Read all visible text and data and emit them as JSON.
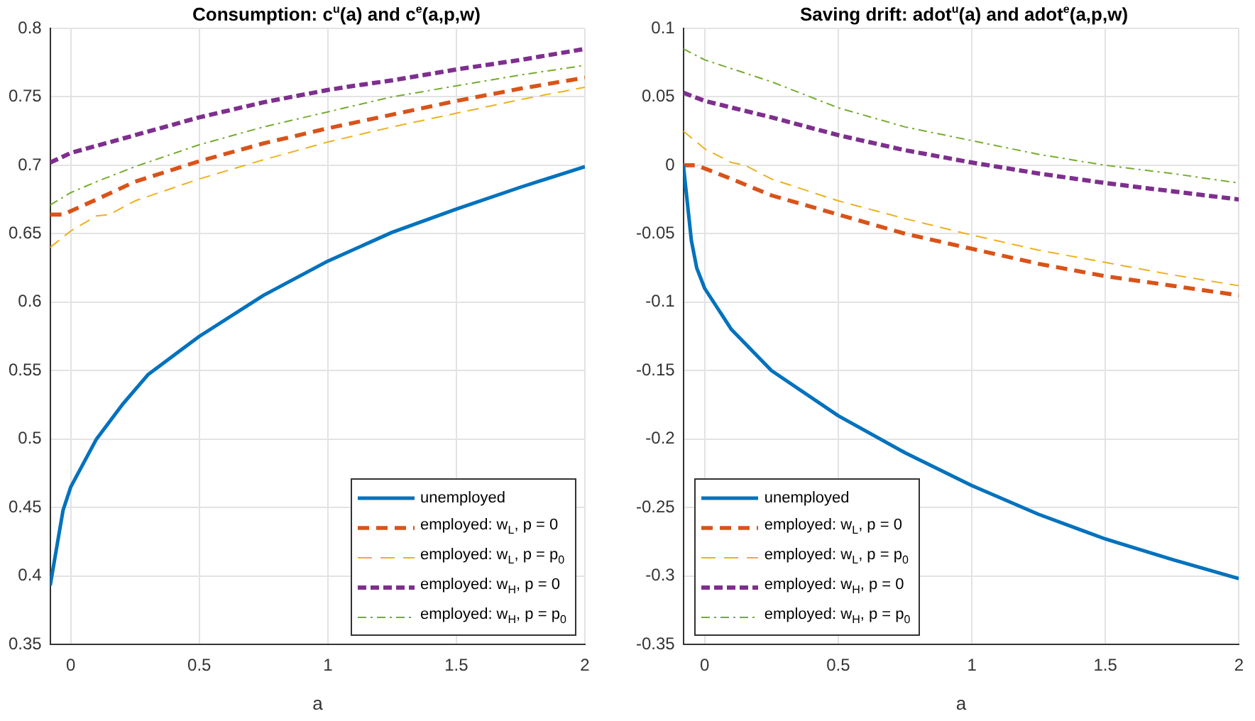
{
  "chart_data": [
    {
      "type": "line",
      "title": "Consumption: c$^{u}$(a) and c$^{e}$(a,p,w)",
      "xlabel": "a",
      "xlim": [
        -0.08,
        2
      ],
      "xticks": [
        0,
        0.5,
        1,
        1.5,
        2
      ],
      "ylim": [
        0.35,
        0.8
      ],
      "yticks": [
        0.35,
        0.4,
        0.45,
        0.5,
        0.55,
        0.6,
        0.65,
        0.7,
        0.75,
        0.8
      ],
      "grid": true,
      "legend": "bottom right",
      "marker": "none",
      "series": [
        {
          "name": "unemployed",
          "color": "#0072bd",
          "line_style": "solid",
          "x": [
            -0.08,
            -0.03,
            0,
            0.1,
            0.2,
            0.3,
            0.5,
            0.75,
            1,
            1.25,
            1.5,
            1.75,
            2
          ],
          "values": [
            0.393,
            0.448,
            0.465,
            0.5,
            0.525,
            0.547,
            0.575,
            0.605,
            0.63,
            0.651,
            0.668,
            0.684,
            0.699
          ]
        },
        {
          "name": "employed: w$_{L}$,  p = 0",
          "color": "#d95319",
          "line_style": "dashed",
          "x": [
            -0.08,
            -0.03,
            0.1,
            0.25,
            0.5,
            0.75,
            1,
            1.25,
            1.5,
            1.75,
            2
          ],
          "values": [
            0.664,
            0.664,
            0.675,
            0.688,
            0.703,
            0.716,
            0.727,
            0.737,
            0.747,
            0.756,
            0.764
          ]
        },
        {
          "name": "employed: w$_{L}$,  p = p$_{0}$",
          "color": "#edb120",
          "line_style": "dashed",
          "x": [
            -0.08,
            0,
            0.1,
            0.15,
            0.25,
            0.5,
            0.75,
            1,
            1.25,
            1.5,
            1.75,
            2
          ],
          "values": [
            0.64,
            0.652,
            0.663,
            0.664,
            0.674,
            0.69,
            0.704,
            0.717,
            0.728,
            0.738,
            0.748,
            0.757
          ]
        },
        {
          "name": "employed: w$_{H}$,  p = 0",
          "color": "#7e2f8e",
          "line_style": "dashed",
          "x": [
            -0.08,
            0,
            0.25,
            0.5,
            0.75,
            1,
            1.1,
            1.25,
            1.5,
            1.75,
            2
          ],
          "values": [
            0.702,
            0.709,
            0.722,
            0.735,
            0.746,
            0.755,
            0.758,
            0.762,
            0.77,
            0.777,
            0.785
          ]
        },
        {
          "name": "employed: w$_{H}$,  p = p$_{0}$",
          "color": "#77ac30",
          "line_style": "dashed",
          "x": [
            -0.08,
            0,
            0.1,
            0.25,
            0.5,
            0.75,
            1,
            1.25,
            1.5,
            1.75,
            2
          ],
          "values": [
            0.671,
            0.68,
            0.688,
            0.699,
            0.715,
            0.728,
            0.739,
            0.75,
            0.758,
            0.766,
            0.773
          ]
        }
      ]
    },
    {
      "type": "line",
      "title": "Saving drift: adot$^{u}$(a) and adot$^{e}$(a,p,w)",
      "xlabel": "a",
      "xlim": [
        -0.08,
        2
      ],
      "xticks": [
        0,
        0.5,
        1,
        1.5,
        2
      ],
      "ylim": [
        -0.35,
        0.1
      ],
      "yticks": [
        -0.35,
        -0.3,
        -0.25,
        -0.2,
        -0.15,
        -0.1,
        -0.05,
        0,
        0.05,
        0.1
      ],
      "grid": true,
      "legend": "bottom left",
      "marker": "none",
      "series": [
        {
          "name": "unemployed",
          "color": "#0072bd",
          "line_style": "solid",
          "x": [
            -0.08,
            -0.05,
            -0.03,
            0,
            0.1,
            0.25,
            0.5,
            0.75,
            1,
            1.25,
            1.5,
            1.75,
            2
          ],
          "values": [
            0,
            -0.055,
            -0.075,
            -0.09,
            -0.12,
            -0.15,
            -0.183,
            -0.21,
            -0.234,
            -0.255,
            -0.273,
            -0.288,
            -0.302
          ]
        },
        {
          "name": "employed: w$_{L}$,  p = 0",
          "color": "#d95319",
          "line_style": "dashed",
          "x": [
            -0.08,
            -0.03,
            0.1,
            0.25,
            0.5,
            0.75,
            1,
            1.25,
            1.5,
            1.75,
            2
          ],
          "values": [
            0,
            0,
            -0.01,
            -0.022,
            -0.036,
            -0.05,
            -0.061,
            -0.072,
            -0.081,
            -0.088,
            -0.095
          ]
        },
        {
          "name": "employed: w$_{L}$,  p = p$_{0}$",
          "color": "#edb120",
          "line_style": "dashed",
          "x": [
            -0.08,
            0,
            0.1,
            0.15,
            0.25,
            0.5,
            0.75,
            1,
            1.25,
            1.5,
            1.75,
            2
          ],
          "values": [
            0.025,
            0.012,
            0.002,
            0,
            -0.01,
            -0.026,
            -0.039,
            -0.051,
            -0.062,
            -0.071,
            -0.08,
            -0.088
          ]
        },
        {
          "name": "employed: w$_{H}$,  p = 0",
          "color": "#7e2f8e",
          "line_style": "dashed",
          "x": [
            -0.08,
            0,
            0.25,
            0.5,
            0.75,
            1,
            1.25,
            1.5,
            1.75,
            2
          ],
          "values": [
            0.053,
            0.047,
            0.035,
            0.022,
            0.011,
            0.002,
            -0.006,
            -0.013,
            -0.019,
            -0.025
          ]
        },
        {
          "name": "employed: w$_{H}$,  p = p$_{0}$",
          "color": "#77ac30",
          "line_style": "dashed",
          "x": [
            -0.08,
            0,
            0.25,
            0.5,
            0.75,
            1,
            1.25,
            1.5,
            1.75,
            2
          ],
          "values": [
            0.085,
            0.077,
            0.061,
            0.042,
            0.028,
            0.018,
            0.008,
            0,
            -0.006,
            -0.013
          ]
        }
      ]
    }
  ]
}
